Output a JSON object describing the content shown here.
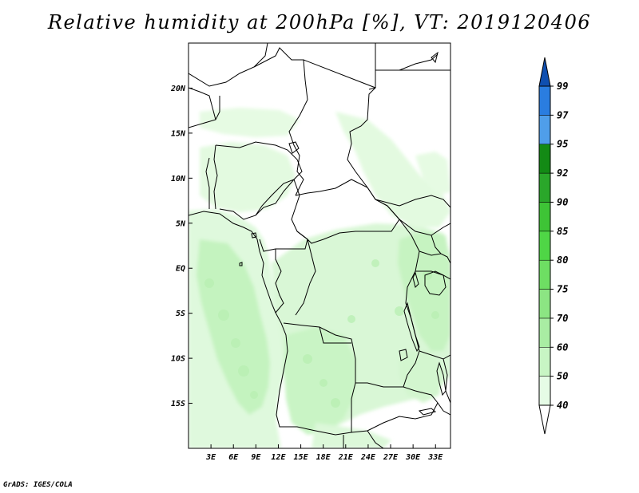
{
  "title": "Relative humidity at 200hPa [%], VT: 2019120406",
  "credit": "GrADS: IGES/COLA",
  "map": {
    "lat_labels": [
      "20N",
      "15N",
      "10N",
      "5N",
      "EQ",
      "5S",
      "10S",
      "15S"
    ],
    "lon_labels": [
      "3E",
      "6E",
      "9E",
      "12E",
      "15E",
      "18E",
      "21E",
      "24E",
      "27E",
      "30E",
      "33E"
    ],
    "lon_range": [
      0,
      35
    ],
    "lat_range": [
      -20,
      25
    ],
    "border_color": "#000000"
  },
  "colorbar": {
    "levels": [
      "40",
      "50",
      "60",
      "70",
      "75",
      "80",
      "85",
      "90",
      "92",
      "95",
      "97",
      "99"
    ],
    "colors": [
      "#e6fce6",
      "#c8f5c4",
      "#a9eda3",
      "#8ce583",
      "#6ede63",
      "#4fd646",
      "#3ec436",
      "#2aa72a",
      "#138a15",
      "#4f9eea",
      "#2a7de0",
      "#1a63c9",
      "#0f4fb0"
    ]
  }
}
